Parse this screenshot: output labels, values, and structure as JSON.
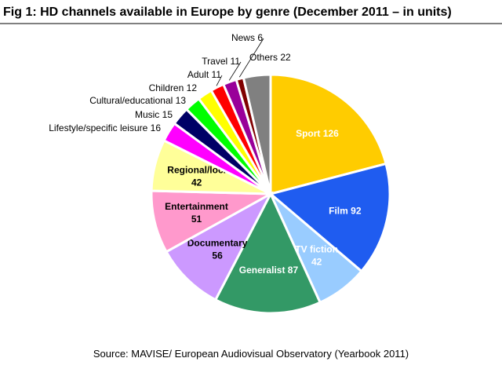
{
  "chart_data": {
    "type": "pie",
    "title": "Fig 1: HD channels available in Europe by genre (December 2011 – in units)",
    "source": "Source: MAVISE/ European Audiovisual Observatory (Yearbook 2011)",
    "categories": [
      "Sport",
      "Film",
      "TV fiction",
      "Generalist",
      "Documentary",
      "Entertainment",
      "Regional/loc.",
      "Lifestyle/specific leisure",
      "Music",
      "Cultural/educational",
      "Children",
      "Adult",
      "Travel",
      "News",
      "Others"
    ],
    "values": [
      126,
      92,
      42,
      87,
      56,
      51,
      42,
      16,
      15,
      13,
      12,
      11,
      11,
      6,
      22
    ],
    "colors": [
      "#ffcc00",
      "#1f5cf0",
      "#99ccff",
      "#339966",
      "#cc99ff",
      "#ff99cc",
      "#ffff99",
      "#ff00ff",
      "#000066",
      "#00ff00",
      "#ffff00",
      "#ff0000",
      "#990099",
      "#800000",
      "#808080"
    ]
  }
}
